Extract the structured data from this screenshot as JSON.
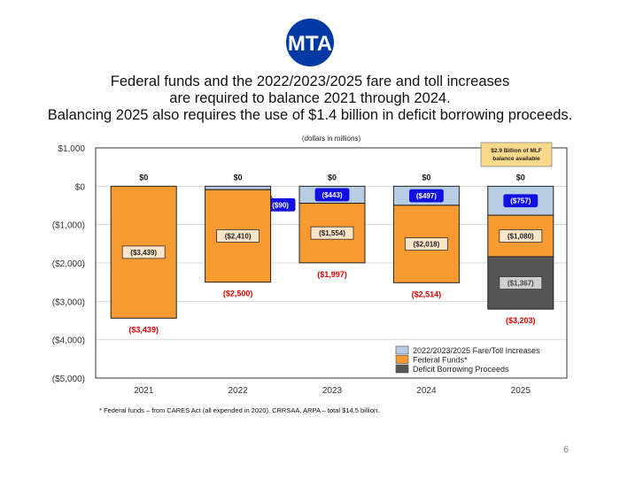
{
  "logo": {
    "text": "MTA",
    "color": "#0039A6"
  },
  "title": {
    "line1": "Federal funds and the 2022/2023/2025 fare and toll increases",
    "line2": "are required to balance 2021 through 2024.",
    "line3": "Balancing 2025 also requires the use of $1.4 billion in deficit borrowing proceeds."
  },
  "chart_data": {
    "type": "bar",
    "stacked": true,
    "subtitle": "(dollars in millions)",
    "categories": [
      "2021",
      "2022",
      "2023",
      "2024",
      "2025"
    ],
    "ylim": [
      -5000,
      1000
    ],
    "yticks": [
      1000,
      0,
      -1000,
      -2000,
      -3000,
      -4000,
      -5000
    ],
    "ytick_labels": [
      "$1,000",
      "$0",
      "($1,000)",
      "($2,000)",
      "($3,000)",
      "($4,000)",
      "($5,000)"
    ],
    "grid": true,
    "legend_placement": "bottom-right",
    "series": [
      {
        "name": "2022/2023/2025 Fare/Toll Increases",
        "color": "#B8CCE4",
        "values": [
          0,
          -90,
          -443,
          -497,
          -757
        ],
        "labels": [
          "",
          "($90)",
          "($443)",
          "($497)",
          "($757)"
        ]
      },
      {
        "name": "Federal Funds*",
        "color": "#F79A30",
        "values": [
          -3439,
          -2410,
          -1554,
          -2018,
          -1080
        ],
        "labels": [
          "($3,439)",
          "($2,410)",
          "($1,554)",
          "($2,018)",
          "($1,080)"
        ]
      },
      {
        "name": "Deficit Borrowing Proceeds",
        "color": "#555555",
        "values": [
          0,
          0,
          0,
          0,
          -1367
        ],
        "labels": [
          "",
          "",
          "",
          "",
          "($1,367)"
        ]
      }
    ],
    "top_labels": [
      "$0",
      "$0",
      "$0",
      "$0",
      "$0"
    ],
    "total_labels": [
      "($3,439)",
      "($2,500)",
      "($1,997)",
      "($2,514)",
      "($3,203)"
    ],
    "annotation": {
      "line1": "$2.9 Billion of MLF",
      "line2": "balance available"
    }
  },
  "footnote": "* Federal funds – from CARES Act (all expended in 2020), CRRSAA, ARPA – total $14.5 billion.",
  "page_number": "6"
}
